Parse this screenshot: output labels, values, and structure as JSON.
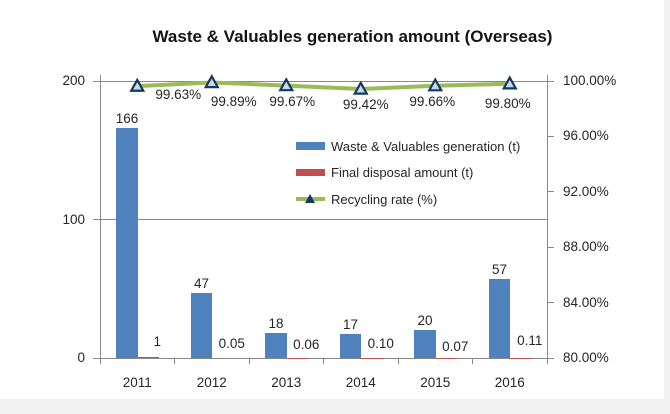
{
  "title": "Waste & Valuables generation amount (Overseas)",
  "colors": {
    "bar_blue": "#4F81BD",
    "bar_red": "#C0504D",
    "line_green": "#9BBB59",
    "marker_border": "#17375E",
    "marker_fill": "#C6D9F1",
    "axis_gray": "#898989",
    "text": "#262626",
    "background": "#FFFFFF",
    "edge_strip": "#F1F1F1"
  },
  "chart_data": {
    "type": "bar",
    "subtype": "bar-line combo, secondary percent axis",
    "categories": [
      "2011",
      "2012",
      "2013",
      "2014",
      "2015",
      "2016"
    ],
    "series": [
      {
        "name": "Waste & Valuables generation (t)",
        "type": "bar",
        "axis": "left",
        "color": "#4F81BD",
        "values": [
          166,
          47,
          18,
          17,
          20,
          57
        ],
        "labels": [
          "166",
          "47",
          "18",
          "17",
          "20",
          "57"
        ]
      },
      {
        "name": "Final disposal amount (t)",
        "type": "bar",
        "axis": "left",
        "color": "#C0504D",
        "values": [
          1,
          0.05,
          0.06,
          0.1,
          0.07,
          0.11
        ],
        "labels": [
          "1",
          "0.05",
          "0.06",
          "0.10",
          "0.07",
          "0.11"
        ]
      },
      {
        "name": "Recycling rate (%)",
        "type": "line",
        "axis": "right",
        "color": "#9BBB59",
        "marker": "triangle",
        "values": [
          99.63,
          99.89,
          99.67,
          99.42,
          99.66,
          99.8
        ],
        "labels": [
          "99.63%",
          "99.89%",
          "99.67%",
          "99.42%",
          "99.66%",
          "99.80%"
        ]
      }
    ],
    "left_axis": {
      "min": 0,
      "max": 200,
      "tick_values": [
        0,
        100,
        200
      ],
      "tick_labels": [
        "0",
        "100",
        "200"
      ]
    },
    "right_axis": {
      "min": 80,
      "max": 100,
      "tick_values": [
        80,
        84,
        88,
        92,
        96,
        100
      ],
      "tick_labels": [
        "80.00%",
        "84.00%",
        "88.00%",
        "92.00%",
        "96.00%",
        "100.00%"
      ]
    },
    "grid": "horizontal gridlines at left-axis values 100 and 200 only",
    "legend_position": "inside right"
  }
}
